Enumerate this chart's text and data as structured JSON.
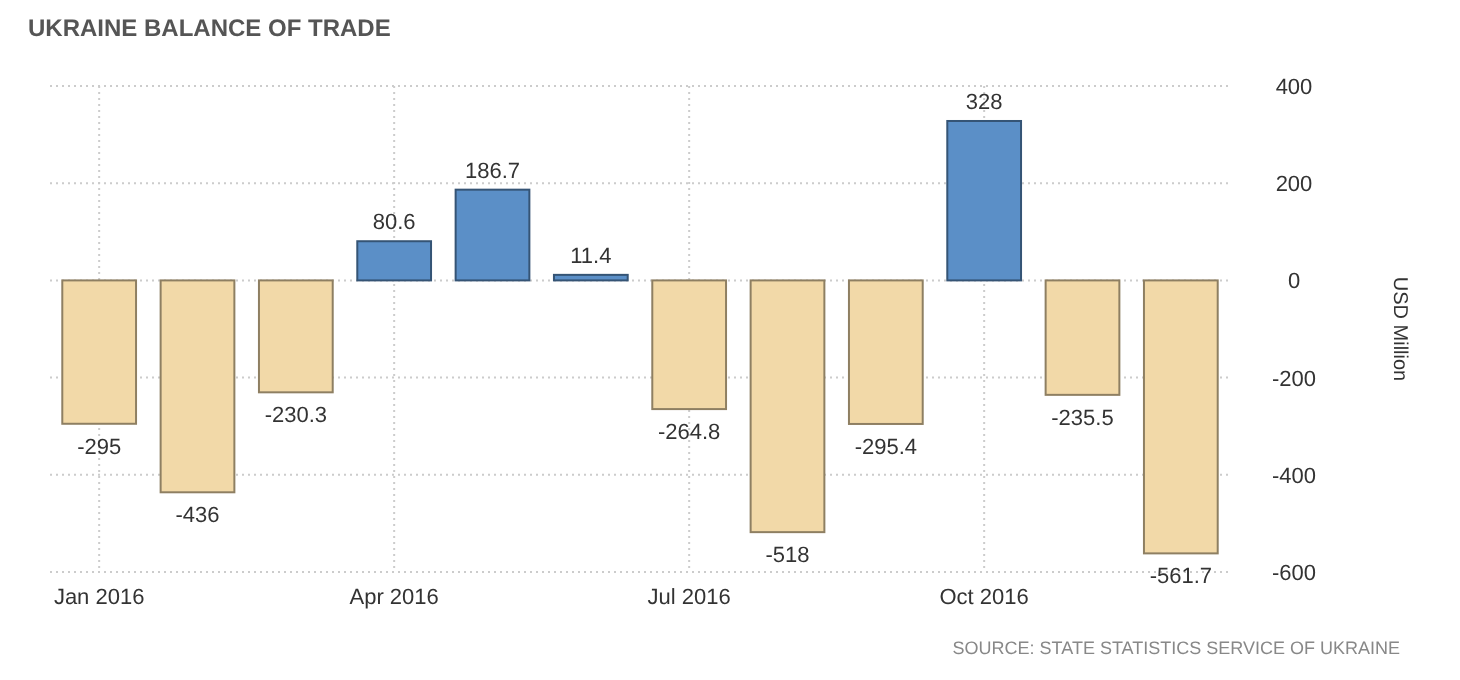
{
  "chart_data": {
    "type": "bar",
    "title": "UKRAINE BALANCE OF TRADE",
    "ylabel": "USD Million",
    "categories": [
      "Jan 2016",
      null,
      null,
      "Apr 2016",
      null,
      null,
      "Jul 2016",
      null,
      null,
      "Oct 2016",
      null,
      null
    ],
    "values": [
      -295,
      -436,
      -230.3,
      80.6,
      186.7,
      11.4,
      -264.8,
      -518,
      -295.4,
      328,
      -235.5,
      -561.7
    ],
    "colors": [
      "#f2d9a8",
      "#f2d9a8",
      "#f2d9a8",
      "#5b8fc7",
      "#5b8fc7",
      "#5b8fc7",
      "#f2d9a8",
      "#f2d9a8",
      "#f2d9a8",
      "#5b8fc7",
      "#f2d9a8",
      "#f2d9a8"
    ],
    "ylim": [
      -600,
      400
    ],
    "yticks": [
      -600,
      -400,
      -200,
      0,
      200,
      400
    ],
    "grid": true,
    "data_labels": true,
    "annotations": [
      "SOURCE: STATE STATISTICS SERVICE OF UKRAINE"
    ]
  }
}
